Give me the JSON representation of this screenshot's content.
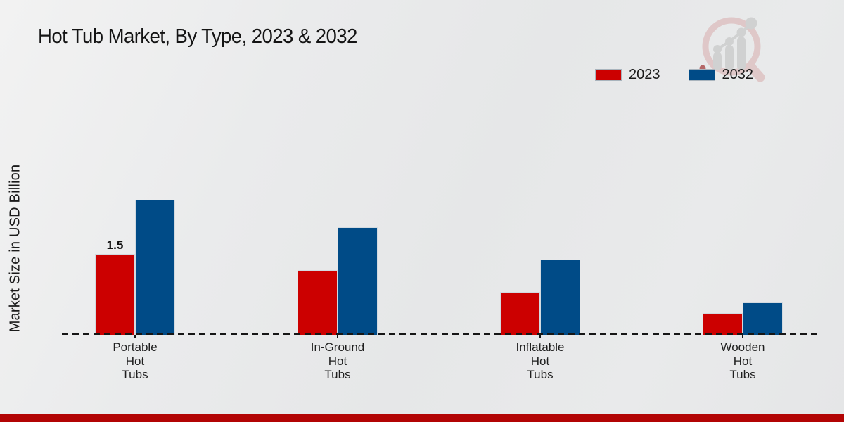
{
  "header": {
    "title": "Hot Tub Market, By Type, 2023 & 2032"
  },
  "ylabel": "Market Size in USD Billion",
  "legend": {
    "items": [
      {
        "label": "2023",
        "color": "#cc0000"
      },
      {
        "label": "2032",
        "color": "#004b87"
      }
    ]
  },
  "icons": {
    "logo": "magnifier-bar-chart-logo"
  },
  "chart_data": {
    "type": "bar",
    "title": "Hot Tub Market, By Type, 2023 & 2032",
    "xlabel": "",
    "ylabel": "Market Size in USD Billion",
    "categories": [
      "Portable Hot Tubs",
      "In-Ground Hot Tubs",
      "Inflatable Hot Tubs",
      "Wooden Hot Tubs"
    ],
    "category_lines": [
      [
        "Portable",
        "Hot",
        "Tubs"
      ],
      [
        "In-Ground",
        "Hot",
        "Tubs"
      ],
      [
        "Inflatable",
        "Hot",
        "Tubs"
      ],
      [
        "Wooden",
        "Hot",
        "Tubs"
      ]
    ],
    "series": [
      {
        "name": "2023",
        "color": "#cc0000",
        "values": [
          1.5,
          1.2,
          0.8,
          0.4
        ],
        "data_labels": [
          "1.5",
          "",
          "",
          ""
        ]
      },
      {
        "name": "2032",
        "color": "#004b87",
        "values": [
          2.5,
          2.0,
          1.4,
          0.6
        ],
        "data_labels": [
          "",
          "",
          "",
          ""
        ]
      }
    ],
    "ylim": [
      0,
      2.6
    ],
    "grid": false,
    "legend_position": "top-right",
    "baseline_style": "dashed"
  },
  "footer": {
    "bar_color": "#b20404"
  }
}
